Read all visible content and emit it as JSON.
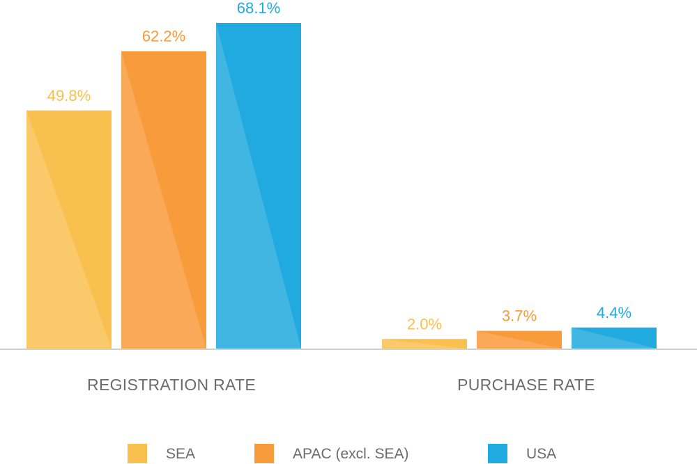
{
  "chart_data": {
    "type": "bar",
    "title": "",
    "xlabel": "",
    "ylabel": "",
    "categories": [
      "REGISTRATION RATE",
      "PURCHASE RATE"
    ],
    "series": [
      {
        "name": "SEA",
        "values": [
          49.8,
          2.0
        ],
        "labels": [
          "49.8%",
          "2.0%"
        ],
        "color": "#F9C04F"
      },
      {
        "name": "APAC (excl. SEA)",
        "values": [
          62.2,
          3.7
        ],
        "labels": [
          "62.2%",
          "3.7%"
        ],
        "color": "#F89B3A"
      },
      {
        "name": "USA",
        "values": [
          68.1,
          4.4
        ],
        "labels": [
          "68.1%",
          "4.4%"
        ],
        "color": "#21AADF"
      }
    ],
    "ylim": [
      0,
      68.1
    ],
    "grid": false,
    "legend": "bottom",
    "unit": "%"
  }
}
